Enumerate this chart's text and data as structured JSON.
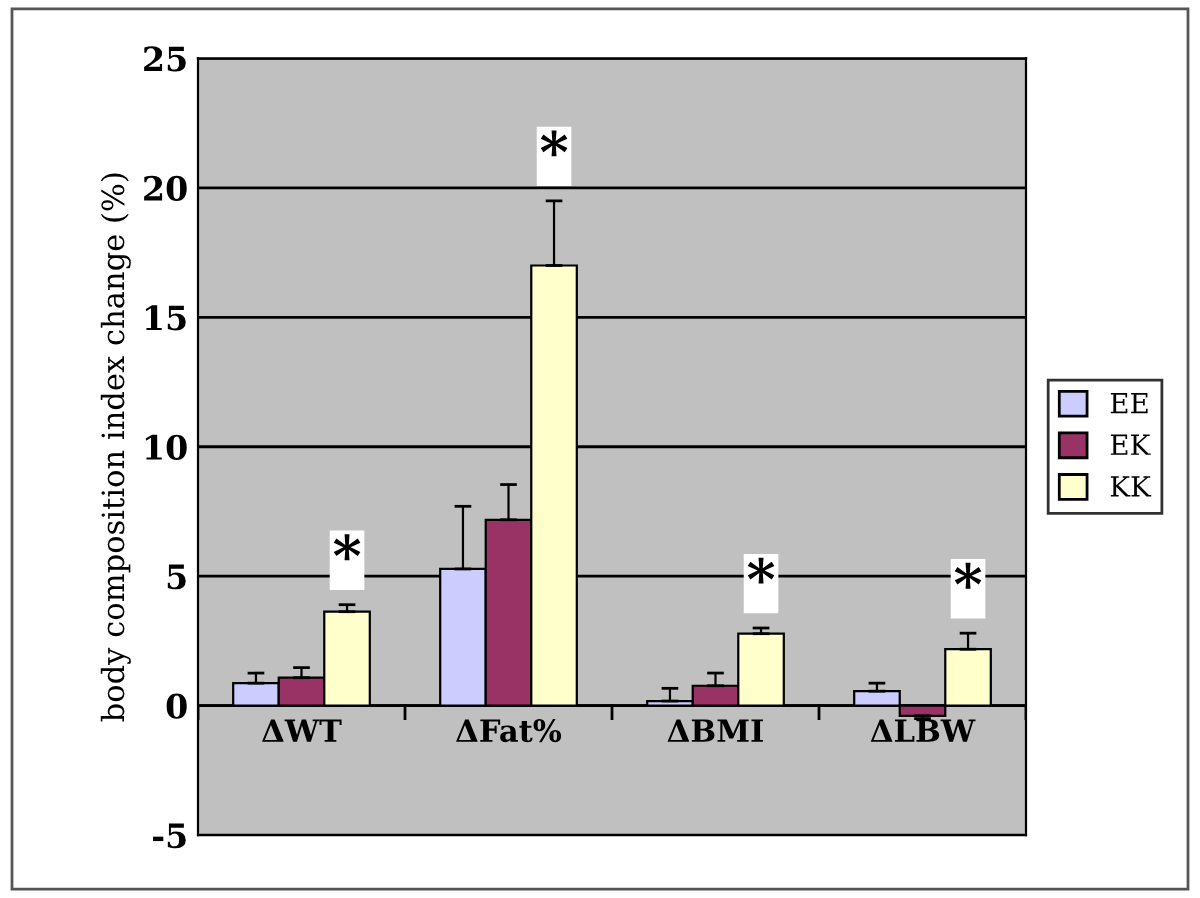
{
  "chart_data": {
    "type": "bar",
    "ylabel": "body composition index change (%)",
    "categories": [
      "ΔWT",
      "ΔFat%",
      "ΔBMI",
      "ΔLBW"
    ],
    "series": [
      {
        "name": "EE",
        "color": "#ccccff",
        "values": [
          0.87,
          5.28,
          0.18,
          0.56
        ],
        "errors": [
          [
            0.87,
            1.26
          ],
          [
            5.28,
            7.7
          ],
          [
            0.18,
            0.67
          ],
          [
            0.56,
            0.87
          ]
        ]
      },
      {
        "name": "EK",
        "color": "#993366",
        "values": [
          1.08,
          7.18,
          0.77,
          -0.39
        ],
        "errors": [
          [
            1.08,
            1.47
          ],
          [
            7.18,
            8.54
          ],
          [
            0.77,
            1.26
          ],
          [
            -0.5,
            -0.39
          ]
        ]
      },
      {
        "name": "KK",
        "color": "#ffffcc",
        "values": [
          3.63,
          17.0,
          2.78,
          2.18
        ],
        "errors": [
          [
            3.63,
            3.9
          ],
          [
            17.0,
            19.5
          ],
          [
            2.78,
            3.0
          ],
          [
            2.18,
            2.8
          ]
        ]
      }
    ],
    "annotations": [
      "*",
      "*",
      "*",
      "*"
    ],
    "ylim": [
      -5,
      25
    ],
    "yticks": [
      -5,
      0,
      5,
      10,
      15,
      20,
      25
    ],
    "grid": "y",
    "legend": "right"
  }
}
